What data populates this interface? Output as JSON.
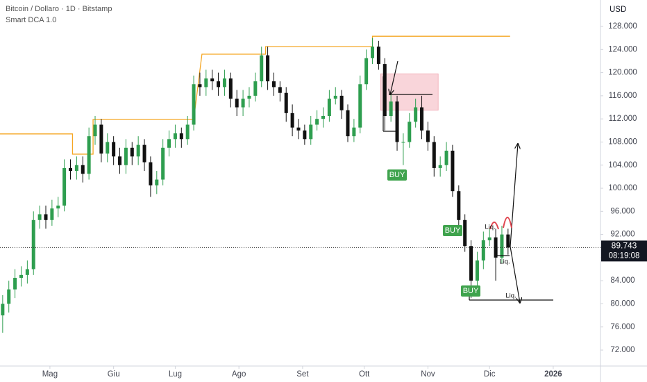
{
  "chart_data": {
    "type": "candlestick",
    "title": "Bitcoin / Dollaro · 1D · Bitstamp",
    "y_axis_label": "USD",
    "up_color": "#2e9e4f",
    "down_color": "#111111",
    "x": [
      -23,
      -20,
      -17,
      -14,
      -11,
      -8,
      -5,
      -2,
      1,
      4,
      7,
      10,
      13,
      16,
      19,
      22,
      25,
      28,
      31,
      34,
      37,
      40,
      43,
      46,
      49,
      52,
      55,
      58,
      61,
      64,
      67,
      70,
      73,
      76,
      79,
      82,
      85,
      88,
      91,
      94,
      97,
      100,
      103,
      106,
      109,
      112,
      115,
      118,
      121,
      124,
      127,
      130,
      133,
      136,
      139,
      142,
      145,
      148,
      151,
      154,
      157,
      160,
      163,
      166,
      169,
      172,
      175,
      178,
      181,
      184,
      187,
      190,
      193,
      196,
      199,
      202,
      205,
      208,
      211,
      214,
      217,
      220,
      223
    ],
    "open": [
      78000,
      80000,
      82500,
      84500,
      85000,
      86000,
      94500,
      95500,
      94500,
      96500,
      97000,
      103500,
      103000,
      104000,
      102500,
      109000,
      111000,
      106000,
      108000,
      105500,
      104000,
      107000,
      105500,
      107500,
      104500,
      100500,
      101500,
      107000,
      108500,
      109500,
      108500,
      111000,
      118000,
      117500,
      119000,
      118500,
      117500,
      119000,
      115500,
      114000,
      115500,
      116000,
      118500,
      123000,
      118500,
      117500,
      116500,
      113000,
      110500,
      110000,
      108500,
      111000,
      112000,
      112500,
      115500,
      116000,
      113500,
      109000,
      110500,
      118000,
      122500,
      124500,
      121500,
      112500,
      115000,
      108000,
      108000,
      111500,
      114000,
      110000,
      108000,
      103500,
      104000,
      106500,
      99500,
      94500,
      90000,
      84000,
      87500,
      91000,
      91500,
      88000,
      92000
    ],
    "high": [
      81500,
      84000,
      86000,
      86500,
      87500,
      96000,
      97000,
      97000,
      98000,
      98500,
      105000,
      105000,
      105500,
      105500,
      110500,
      112500,
      112000,
      109500,
      109000,
      107000,
      108500,
      108000,
      109000,
      108500,
      105500,
      103000,
      108500,
      110000,
      111000,
      110500,
      112500,
      119500,
      120000,
      120500,
      120500,
      120000,
      120500,
      120000,
      117000,
      117000,
      117500,
      120000,
      124500,
      124500,
      120000,
      118500,
      117500,
      114500,
      112000,
      111000,
      112500,
      113500,
      114000,
      117000,
      117500,
      117000,
      114500,
      112000,
      119500,
      124000,
      126000,
      125500,
      122500,
      116500,
      116000,
      109500,
      113000,
      115500,
      116000,
      111500,
      109000,
      105500,
      108000,
      107500,
      100500,
      95500,
      91000,
      89000,
      92500,
      93000,
      93000,
      93500,
      93000
    ],
    "low": [
      75000,
      78500,
      81000,
      83000,
      83500,
      85000,
      93000,
      93000,
      93500,
      95000,
      96000,
      101500,
      101500,
      101000,
      101500,
      107500,
      104500,
      104500,
      104000,
      102500,
      102500,
      104000,
      104000,
      103000,
      98500,
      99000,
      100500,
      105500,
      107000,
      107000,
      107500,
      110000,
      116000,
      116000,
      117000,
      116000,
      116000,
      114000,
      112500,
      112500,
      114000,
      115000,
      117500,
      117000,
      116000,
      115000,
      111500,
      109000,
      108500,
      107500,
      107500,
      110000,
      110500,
      111500,
      114500,
      112000,
      108000,
      108000,
      109500,
      117000,
      121500,
      120500,
      110000,
      111500,
      106500,
      104000,
      107000,
      110500,
      108500,
      106500,
      102000,
      102000,
      103000,
      98500,
      93500,
      89000,
      81000,
      83000,
      86000,
      90000,
      84000,
      87000,
      88500
    ],
    "close": [
      80000,
      82500,
      84500,
      85000,
      86000,
      94500,
      95500,
      94500,
      96500,
      97000,
      103500,
      103000,
      104000,
      102500,
      109000,
      111000,
      106000,
      108000,
      105500,
      104000,
      107000,
      105500,
      107500,
      104500,
      100500,
      101500,
      107000,
      108500,
      109500,
      108500,
      111000,
      118000,
      117500,
      119000,
      118500,
      117500,
      119000,
      115500,
      114000,
      115500,
      116000,
      118500,
      123000,
      118500,
      117500,
      116500,
      113000,
      110500,
      110000,
      108500,
      111000,
      112000,
      112500,
      115500,
      116000,
      113500,
      109000,
      110500,
      118000,
      122500,
      124500,
      121500,
      112500,
      115000,
      108000,
      108000,
      111500,
      114000,
      110000,
      108000,
      103500,
      104000,
      106500,
      99500,
      94500,
      90000,
      84000,
      87500,
      91000,
      91500,
      88000,
      92000,
      89743
    ],
    "indicator": {
      "name": "Smart DCA 1.0",
      "color": "#f5a623",
      "x": [
        -24.3,
        11,
        11,
        21,
        21,
        70,
        74,
        105,
        105,
        157,
        157,
        224
      ],
      "values": [
        109400,
        109400,
        105900,
        105900,
        111900,
        111900,
        123200,
        123200,
        124500,
        124500,
        126300,
        126300
      ]
    },
    "zone": {
      "x": [
        161,
        189
      ],
      "y": [
        113500,
        119800
      ],
      "color": "#f9d5da"
    },
    "current_price": {
      "value": 89743,
      "label": "89.743"
    },
    "countdown": "08:19:08",
    "annotations": [
      "BUY",
      "BUY",
      "BUY",
      "Liq.",
      "Liq.",
      "Liq."
    ],
    "xlim": [
      -24.3,
      268
    ],
    "ylim": [
      69240,
      132570
    ],
    "xticks": [
      {
        "value": 0,
        "label": "Mag"
      },
      {
        "value": 31,
        "label": "Giu"
      },
      {
        "value": 61,
        "label": "Lug"
      },
      {
        "value": 92,
        "label": "Ago"
      },
      {
        "value": 123,
        "label": "Set"
      },
      {
        "value": 153,
        "label": "Ott"
      },
      {
        "value": 184,
        "label": "Nov"
      },
      {
        "value": 214,
        "label": "Dic"
      },
      {
        "value": 245,
        "label": "2026"
      }
    ],
    "yticks": [
      {
        "value": 72000,
        "label": "72.000"
      },
      {
        "value": 76000,
        "label": "76.000"
      },
      {
        "value": 80000,
        "label": "80.000"
      },
      {
        "value": 84000,
        "label": "84.000"
      },
      {
        "value": 88000,
        "label": "88.000"
      },
      {
        "value": 92000,
        "label": "92.000"
      },
      {
        "value": 96000,
        "label": "96.000"
      },
      {
        "value": 100000,
        "label": "100.000"
      },
      {
        "value": 104000,
        "label": "104.000"
      },
      {
        "value": 108000,
        "label": "108.000"
      },
      {
        "value": 112000,
        "label": "112.000"
      },
      {
        "value": 116000,
        "label": "116.000"
      },
      {
        "value": 120000,
        "label": "120.000"
      },
      {
        "value": 124000,
        "label": "124.000"
      },
      {
        "value": 128000,
        "label": "128.000"
      }
    ]
  }
}
